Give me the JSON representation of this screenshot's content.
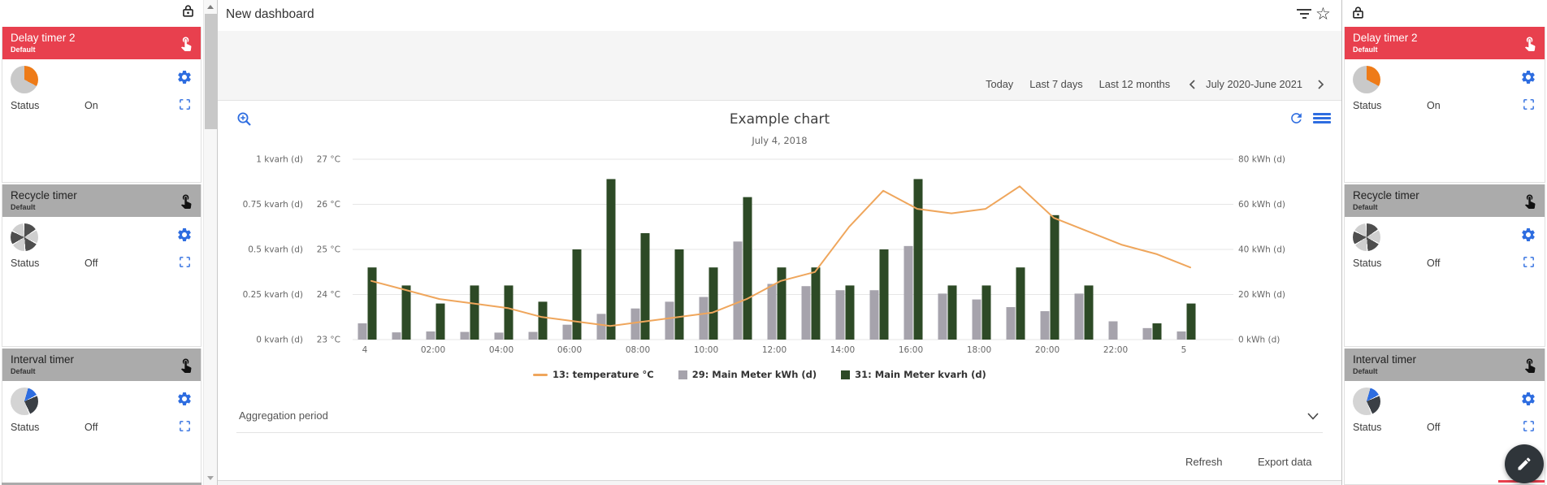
{
  "colors": {
    "accent_blue": "#2e6de0",
    "red_header": "#e8404e",
    "gray_header": "#ababab",
    "bar_gray": "#a6a3ac",
    "bar_green": "#2d4a26",
    "line_orange": "#efa65c",
    "fab_background": "#2f353a"
  },
  "panel": {
    "cards": [
      {
        "title": "Delay timer 2",
        "subtitle": "Default",
        "status_label": "Status",
        "status_value": "On",
        "variant": "red",
        "icon": "delay-timer-pie"
      },
      {
        "title": "Recycle timer",
        "subtitle": "Default",
        "status_label": "Status",
        "status_value": "Off",
        "variant": "gray",
        "icon": "recycle-timer-pie"
      },
      {
        "title": "Interval timer",
        "subtitle": "Default",
        "status_label": "Status",
        "status_value": "Off",
        "variant": "gray",
        "icon": "interval-timer-pie"
      }
    ]
  },
  "header": {
    "title": "New dashboard"
  },
  "toolbar": {
    "ranges": [
      "Today",
      "Last 7 days",
      "Last 12 months"
    ],
    "period_label": "July 2020-June 2021"
  },
  "chart_data": {
    "type": "combo",
    "title": "Example chart",
    "subtitle": "July 4, 2018",
    "x_hours": [
      0,
      1,
      2,
      3,
      4,
      5,
      6,
      7,
      8,
      9,
      10,
      11,
      12,
      13,
      14,
      15,
      16,
      17,
      18,
      19,
      20,
      21,
      22,
      23,
      24
    ],
    "x_tick_labels": [
      "4",
      "02:00",
      "04:00",
      "06:00",
      "08:00",
      "10:00",
      "12:00",
      "14:00",
      "16:00",
      "18:00",
      "20:00",
      "22:00",
      "5"
    ],
    "axes": {
      "kvarh": {
        "min": 0,
        "max": 1,
        "labels_top_to_bottom": [
          "1 kvarh (d)",
          "0.75 kvarh (d)",
          "0.5 kvarh (d)",
          "0.25 kvarh (d)",
          "0 kvarh (d)"
        ]
      },
      "temp": {
        "min": 23,
        "max": 27,
        "labels_top_to_bottom": [
          "27 °C",
          "26 °C",
          "25 °C",
          "24 °C",
          "23 °C"
        ]
      },
      "kwh": {
        "min": 0,
        "max": 80,
        "labels_top_to_bottom": [
          "80 kWh (d)",
          "60 kWh (d)",
          "40 kWh (d)",
          "20 kWh (d)",
          "0 kWh (d)"
        ]
      }
    },
    "series": [
      {
        "name": "13: temperature °C",
        "type": "line",
        "axis": "temp",
        "color": "#efa65c",
        "values": [
          24.3,
          24.1,
          23.9,
          23.8,
          23.7,
          23.5,
          23.4,
          23.3,
          23.4,
          23.5,
          23.6,
          23.9,
          24.3,
          24.5,
          25.5,
          26.3,
          25.9,
          25.8,
          25.9,
          26.4,
          25.7,
          25.4,
          25.1,
          24.9,
          24.6
        ]
      },
      {
        "name": "29: Main Meter kWh (d)",
        "type": "bar",
        "axis": "kwh",
        "color": "#a6a3ac",
        "values": [
          7.2,
          3.2,
          3.6,
          3.4,
          3.1,
          3.4,
          6.6,
          11.4,
          13.8,
          16.8,
          18.9,
          43.5,
          24.7,
          23.7,
          21.9,
          21.9,
          41.5,
          20.4,
          17.8,
          14.4,
          12.6,
          20.4,
          8.1,
          5.1,
          3.6
        ]
      },
      {
        "name": "31: Main Meter kvarh (d)",
        "type": "bar",
        "axis": "kvarh",
        "color": "#2d4a26",
        "values": [
          0.4,
          0.3,
          0.2,
          0.3,
          0.3,
          0.21,
          0.5,
          0.89,
          0.59,
          0.5,
          0.4,
          0.79,
          0.4,
          0.4,
          0.3,
          0.5,
          0.89,
          0.3,
          0.3,
          0.4,
          0.69,
          0.3,
          0,
          0.09,
          0.2
        ]
      }
    ],
    "legend_position": "bottom",
    "grid": true
  },
  "aggregation_label": "Aggregation period",
  "actions": {
    "refresh_label": "Refresh",
    "export_label": "Export data"
  }
}
